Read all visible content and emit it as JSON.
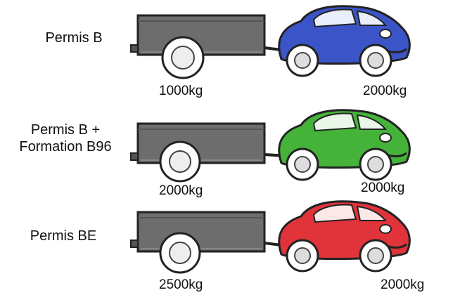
{
  "rows": [
    {
      "license": "Permis B",
      "license_line2": "",
      "trailer_weight": "1000kg",
      "car_weight": "2000kg",
      "car_color": "#3b55c9"
    },
    {
      "license": "Permis B +",
      "license_line2": "Formation B96",
      "trailer_weight": "2000kg",
      "car_weight": "2000kg",
      "car_color": "#45b33a"
    },
    {
      "license": "Permis BE",
      "license_line2": "",
      "trailer_weight": "2500kg",
      "car_weight": "2000kg",
      "car_color": "#e0333a"
    }
  ],
  "icons": {
    "trailer": "trailer-icon",
    "car": "car-icon",
    "wheel": "wheel-icon"
  }
}
